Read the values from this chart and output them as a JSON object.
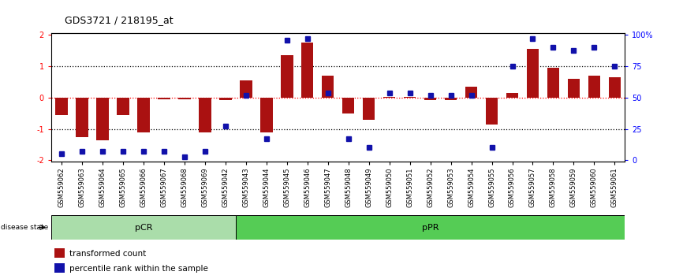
{
  "title": "GDS3721 / 218195_at",
  "samples": [
    "GSM559062",
    "GSM559063",
    "GSM559064",
    "GSM559065",
    "GSM559066",
    "GSM559067",
    "GSM559068",
    "GSM559069",
    "GSM559042",
    "GSM559043",
    "GSM559044",
    "GSM559045",
    "GSM559046",
    "GSM559047",
    "GSM559048",
    "GSM559049",
    "GSM559050",
    "GSM559051",
    "GSM559052",
    "GSM559053",
    "GSM559054",
    "GSM559055",
    "GSM559056",
    "GSM559057",
    "GSM559058",
    "GSM559059",
    "GSM559060",
    "GSM559061"
  ],
  "transformed_count": [
    -0.55,
    -1.25,
    -1.35,
    -0.55,
    -1.1,
    -0.05,
    -0.05,
    -1.1,
    -0.08,
    0.55,
    -1.1,
    1.35,
    1.75,
    0.7,
    -0.5,
    -0.7,
    0.03,
    0.03,
    -0.08,
    -0.08,
    0.35,
    -0.85,
    0.15,
    1.55,
    0.95,
    0.6,
    0.7,
    0.65
  ],
  "percentile_rank": [
    5,
    7,
    7,
    7,
    7,
    7,
    3,
    7,
    27,
    52,
    17,
    96,
    97,
    54,
    17,
    10,
    54,
    54,
    52,
    52,
    52,
    10,
    75,
    97,
    90,
    88,
    90,
    75
  ],
  "pCR_count": 9,
  "pPR_count": 19,
  "bar_color": "#AA1111",
  "dot_color": "#1111AA",
  "left_ylim": [
    -2.05,
    2.05
  ],
  "yticks_left": [
    -2,
    -1,
    0,
    1,
    2
  ],
  "yticks_right": [
    0,
    25,
    50,
    75,
    100
  ],
  "ytick_right_labels": [
    "0",
    "25",
    "50",
    "75",
    "100%"
  ],
  "pCR_color": "#AADDAA",
  "pPR_color": "#55CC55",
  "label_bar": "transformed count",
  "label_dot": "percentile rank within the sample",
  "title_fontsize": 9,
  "tick_fontsize": 6,
  "axis_label_fontsize": 7
}
